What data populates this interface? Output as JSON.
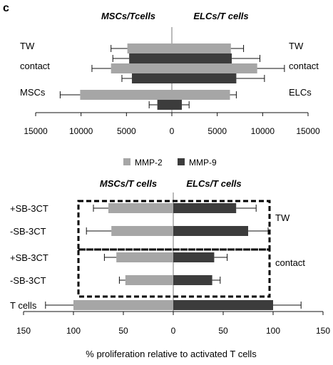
{
  "panel_label": "c",
  "colors": {
    "mmp2": "#a6a6a6",
    "mmp9": "#3c3c3c",
    "error": "#111111",
    "group_box": "#000000"
  },
  "legend": {
    "items": [
      "MMP-2",
      "MMP-9"
    ]
  },
  "chart_data": [
    {
      "type": "bar",
      "orientation": "horizontal",
      "subtype": "back-to-back",
      "headers": {
        "left": "MSCs/Tcells",
        "right": "ELCs/T cells"
      },
      "row_labels_left": [
        "TW",
        "contact",
        "MSCs"
      ],
      "row_labels_right": [
        "TW",
        "contact",
        "ELCs"
      ],
      "xlim": [
        -15000,
        15000
      ],
      "xticks": [
        -15000,
        -10000,
        -5000,
        0,
        5000,
        10000,
        15000
      ],
      "xtick_labels": [
        "15000",
        "10000",
        "5000",
        "0",
        "5000",
        "10000",
        "15000"
      ],
      "series": [
        {
          "name": "MMP-2",
          "left": [
            4900,
            6700,
            10100
          ],
          "left_err": [
            1800,
            2100,
            2200
          ],
          "right": [
            6500,
            9400,
            6400
          ],
          "right_err": [
            1400,
            3000,
            700
          ]
        },
        {
          "name": "MMP-9",
          "left": [
            4700,
            4400,
            1600
          ],
          "left_err": [
            1800,
            1100,
            900
          ],
          "right": [
            6600,
            7100,
            1100
          ],
          "right_err": [
            3100,
            3100,
            800
          ]
        }
      ]
    },
    {
      "type": "bar",
      "orientation": "horizontal",
      "subtype": "back-to-back",
      "headers": {
        "left": "MSCs/T cells",
        "right": "ELCs/T cells"
      },
      "row_labels": [
        "+SB-3CT",
        "-SB-3CT",
        "+SB-3CT",
        "-SB-3CT",
        "T cells"
      ],
      "group_labels": [
        "TW",
        "contact"
      ],
      "xlim": [
        -150,
        150
      ],
      "xticks": [
        -150,
        -100,
        -50,
        0,
        50,
        100,
        150
      ],
      "xtick_labels": [
        "150",
        "100",
        "50",
        "0",
        "50",
        "100",
        "150"
      ],
      "xlabel": "% proliferation relative to activated T cells",
      "series": [
        {
          "name": "MSCs/T cells",
          "values": [
            65,
            62,
            57,
            48,
            100
          ],
          "errors": [
            15,
            25,
            12,
            6,
            28
          ]
        },
        {
          "name": "ELCs/T cells",
          "values": [
            63,
            75,
            41,
            39,
            100
          ],
          "errors": [
            20,
            20,
            13,
            8,
            28
          ]
        }
      ]
    }
  ]
}
